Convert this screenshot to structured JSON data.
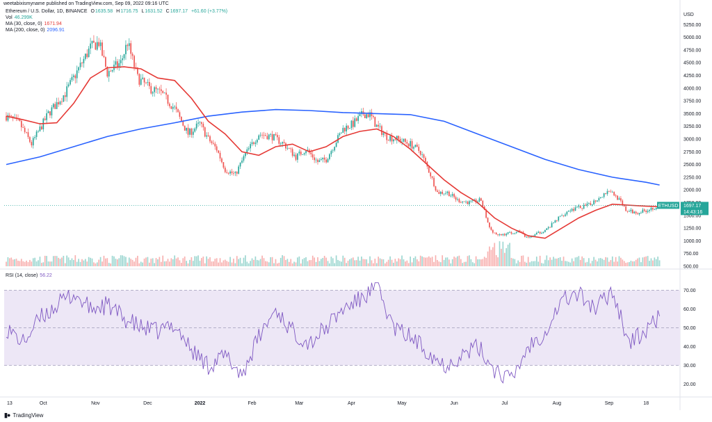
{
  "header": {
    "publisher": "weetabixismyname published on TradingView.com, Sep 09, 2022 09:16 UTC",
    "symbol_title": "Ethereum / U.S. Dollar, 1D, BINANCE",
    "ohlc": {
      "o_label": "O",
      "o": "1635.58",
      "h_label": "H",
      "h": "1716.75",
      "l_label": "L",
      "l": "1631.52",
      "c_label": "C",
      "c": "1697.17",
      "change": "+61.60 (+3.77%)"
    },
    "vol_label": "Vol",
    "vol_value": "46.299K",
    "ma30_label": "MA (30, close, 0)",
    "ma30_value": "1671.94",
    "ma200_label": "MA (200, close, 0)",
    "ma200_value": "2096.91",
    "rsi_label": "RSI (14, close)",
    "rsi_value": "56.22"
  },
  "currency_label": "USD",
  "footer": {
    "brand": "TradingView"
  },
  "colors": {
    "up": "#26a69a",
    "down": "#ef5350",
    "ma30": "#e53935",
    "ma200": "#2962ff",
    "rsi": "#7e57c2",
    "rsi_band": "#ede7f6",
    "price_tag": "#26a69a"
  },
  "price_tag": {
    "symbol": "ETHUSD",
    "price": "1697.17",
    "countdown": "14:43:16"
  },
  "chart_data": {
    "type": "candlestick",
    "series": [
      {
        "name": "Ethereum / U.S. Dollar, 1D, BINANCE",
        "kind": "candles"
      },
      {
        "name": "MA (30, close, 0)",
        "kind": "line",
        "points": [
          [
            0,
            3450
          ],
          [
            10,
            3380
          ],
          [
            20,
            3300
          ],
          [
            30,
            3320
          ],
          [
            40,
            3700
          ],
          [
            50,
            4200
          ],
          [
            60,
            4400
          ],
          [
            70,
            4420
          ],
          [
            80,
            4380
          ],
          [
            90,
            4200
          ],
          [
            100,
            4150
          ],
          [
            110,
            3800
          ],
          [
            120,
            3350
          ],
          [
            130,
            3100
          ],
          [
            140,
            2750
          ],
          [
            150,
            2680
          ],
          [
            160,
            2850
          ],
          [
            170,
            2900
          ],
          [
            180,
            2750
          ],
          [
            190,
            2850
          ],
          [
            200,
            3050
          ],
          [
            210,
            3150
          ],
          [
            220,
            3200
          ],
          [
            230,
            3050
          ],
          [
            240,
            2800
          ],
          [
            250,
            2500
          ],
          [
            260,
            2200
          ],
          [
            270,
            1950
          ],
          [
            280,
            1750
          ],
          [
            290,
            1450
          ],
          [
            300,
            1250
          ],
          [
            310,
            1100
          ],
          [
            320,
            1050
          ],
          [
            330,
            1250
          ],
          [
            340,
            1450
          ],
          [
            350,
            1600
          ],
          [
            360,
            1720
          ],
          [
            370,
            1700
          ],
          [
            380,
            1680
          ],
          [
            388,
            1672
          ]
        ]
      },
      {
        "name": "MA (200, close, 0)",
        "kind": "line",
        "points": [
          [
            0,
            2500
          ],
          [
            20,
            2650
          ],
          [
            40,
            2850
          ],
          [
            60,
            3050
          ],
          [
            80,
            3200
          ],
          [
            100,
            3320
          ],
          [
            120,
            3450
          ],
          [
            140,
            3530
          ],
          [
            160,
            3580
          ],
          [
            180,
            3560
          ],
          [
            200,
            3520
          ],
          [
            220,
            3500
          ],
          [
            240,
            3480
          ],
          [
            260,
            3350
          ],
          [
            280,
            3100
          ],
          [
            300,
            2850
          ],
          [
            320,
            2600
          ],
          [
            340,
            2400
          ],
          [
            360,
            2250
          ],
          [
            380,
            2150
          ],
          [
            388,
            2097
          ]
        ]
      },
      {
        "name": "RSI (14, close)",
        "kind": "line",
        "pane": "rsi",
        "points": [
          [
            0,
            50
          ],
          [
            10,
            42
          ],
          [
            20,
            55
          ],
          [
            30,
            62
          ],
          [
            40,
            68
          ],
          [
            50,
            60
          ],
          [
            60,
            62
          ],
          [
            70,
            55
          ],
          [
            80,
            50
          ],
          [
            90,
            48
          ],
          [
            100,
            52
          ],
          [
            110,
            38
          ],
          [
            120,
            30
          ],
          [
            130,
            35
          ],
          [
            140,
            25
          ],
          [
            150,
            45
          ],
          [
            160,
            60
          ],
          [
            170,
            48
          ],
          [
            180,
            42
          ],
          [
            190,
            50
          ],
          [
            200,
            60
          ],
          [
            210,
            65
          ],
          [
            220,
            72
          ],
          [
            230,
            50
          ],
          [
            240,
            45
          ],
          [
            250,
            38
          ],
          [
            260,
            30
          ],
          [
            270,
            35
          ],
          [
            280,
            40
          ],
          [
            290,
            28
          ],
          [
            300,
            22
          ],
          [
            310,
            40
          ],
          [
            320,
            48
          ],
          [
            330,
            65
          ],
          [
            340,
            68
          ],
          [
            350,
            60
          ],
          [
            360,
            70
          ],
          [
            370,
            42
          ],
          [
            380,
            48
          ],
          [
            388,
            56.22
          ]
        ]
      }
    ],
    "x_tick_labels": [
      "13",
      "Oct",
      "Nov",
      "Dec",
      "2022",
      "Feb",
      "Mar",
      "Apr",
      "May",
      "Jun",
      "Jul",
      "Aug",
      "Sep",
      "18"
    ],
    "price_ticks": [
      "5250.00",
      "5000.00",
      "4750.00",
      "4500.00",
      "4250.00",
      "4000.00",
      "3750.00",
      "3500.00",
      "3250.00",
      "3000.00",
      "2750.00",
      "2500.00",
      "2250.00",
      "2000.00",
      "1750.00",
      "1500.00",
      "1250.00",
      "1000.00",
      "750.00",
      "500.00"
    ],
    "price_ylim": [
      500,
      5350
    ],
    "rsi_ticks": [
      "70.00",
      "60.00",
      "50.00",
      "40.00",
      "30.00",
      "20.00"
    ],
    "rsi_ylim": [
      15,
      75
    ],
    "rsi_bands": [
      30,
      70
    ],
    "anchors": [
      [
        0,
        3450
      ],
      [
        8,
        3300
      ],
      [
        15,
        2900
      ],
      [
        25,
        3500
      ],
      [
        35,
        3900
      ],
      [
        45,
        4500
      ],
      [
        50,
        4800
      ],
      [
        55,
        4900
      ],
      [
        60,
        4300
      ],
      [
        68,
        4500
      ],
      [
        72,
        4900
      ],
      [
        78,
        4200
      ],
      [
        85,
        4000
      ],
      [
        92,
        3900
      ],
      [
        100,
        3600
      ],
      [
        108,
        3100
      ],
      [
        115,
        3300
      ],
      [
        120,
        3000
      ],
      [
        125,
        2800
      ],
      [
        130,
        2400
      ],
      [
        136,
        2300
      ],
      [
        142,
        2700
      ],
      [
        150,
        3100
      ],
      [
        158,
        3050
      ],
      [
        165,
        2900
      ],
      [
        172,
        2650
      ],
      [
        178,
        2800
      ],
      [
        185,
        2550
      ],
      [
        190,
        2600
      ],
      [
        195,
        2900
      ],
      [
        200,
        3200
      ],
      [
        206,
        3300
      ],
      [
        212,
        3500
      ],
      [
        216,
        3480
      ],
      [
        220,
        3250
      ],
      [
        226,
        3050
      ],
      [
        232,
        3000
      ],
      [
        240,
        2900
      ],
      [
        246,
        2750
      ],
      [
        252,
        2300
      ],
      [
        256,
        1950
      ],
      [
        262,
        1950
      ],
      [
        268,
        1800
      ],
      [
        275,
        1750
      ],
      [
        282,
        1800
      ],
      [
        287,
        1250
      ],
      [
        292,
        1100
      ],
      [
        298,
        1150
      ],
      [
        304,
        1200
      ],
      [
        310,
        1050
      ],
      [
        316,
        1150
      ],
      [
        322,
        1250
      ],
      [
        328,
        1450
      ],
      [
        334,
        1600
      ],
      [
        340,
        1650
      ],
      [
        346,
        1700
      ],
      [
        352,
        1850
      ],
      [
        358,
        2000
      ],
      [
        363,
        1850
      ],
      [
        368,
        1600
      ],
      [
        374,
        1550
      ],
      [
        380,
        1600
      ],
      [
        388,
        1697
      ]
    ]
  }
}
